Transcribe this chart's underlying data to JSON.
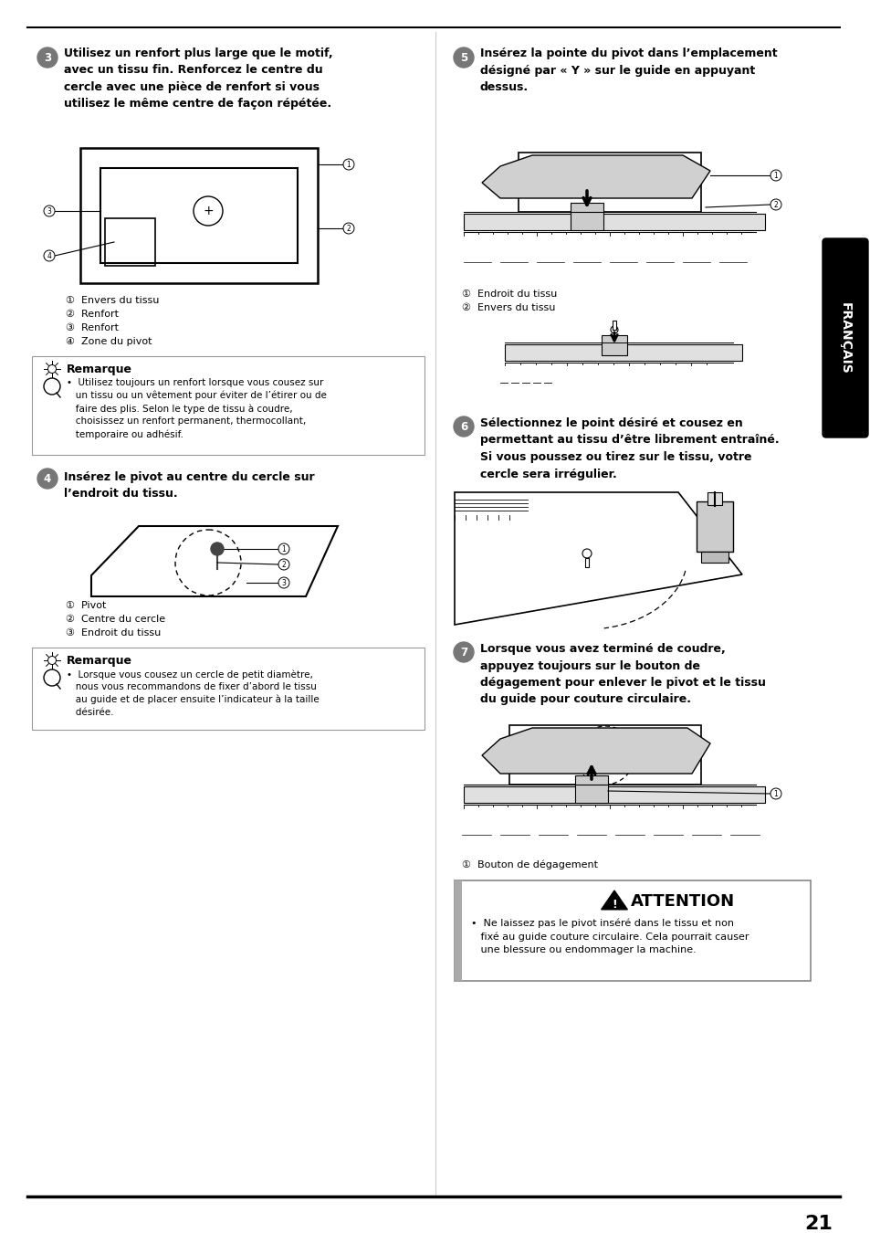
{
  "background_color": "#ffffff",
  "page_number": "21",
  "sidebar_text": "FRANÇAIS",
  "step3_title": "Utilisez un renfort plus large que le motif,\navec un tissu fin. Renforcez le centre du\ncercle avec une pièce de renfort si vous\nutilisez le même centre de façon répétée.",
  "step3_labels": [
    "①  Envers du tissu",
    "②  Renfort",
    "③  Renfort",
    "④  Zone du pivot"
  ],
  "step4_title": "Insérez le pivot au centre du cercle sur\nl’endroit du tissu.",
  "step4_labels": [
    "①  Pivot",
    "②  Centre du cercle",
    "③  Endroit du tissu"
  ],
  "step5_title": "Insérez la pointe du pivot dans l’emplacement\ndésigné par « Y » sur le guide en appuyant\ndessus.",
  "step5_labels": [
    "①  Endroit du tissu",
    "②  Envers du tissu"
  ],
  "step6_title": "Sélectionnez le point désiré et cousez en\npermettant au tissu d’être librement entraîné.\nSi vous poussez ou tirez sur le tissu, votre\ncercle sera irrégulier.",
  "step7_title": "Lorsque vous avez terminé de coudre,\nappuyez toujours sur le bouton de\ndégagement pour enlever le pivot et le tissu\ndu guide pour couture circulaire.",
  "step7_labels": [
    "①  Bouton de dégagement"
  ],
  "note1_title": "Remarque",
  "note1_text": "•  Utilisez toujours un renfort lorsque vous cousez sur\n   un tissu ou un vêtement pour éviter de l’étirer ou de\n   faire des plis. Selon le type de tissu à coudre,\n   choisissez un renfort permanent, thermocollant,\n   temporaire ou adhésif.",
  "note2_title": "Remarque",
  "note2_text": "•  Lorsque vous cousez un cercle de petit diamètre,\n   nous vous recommandons de fixer d’abord le tissu\n   au guide et de placer ensuite l’indicateur à la taille\n   désirée.",
  "attention_title": "ATTENTION",
  "attention_text": "•  Ne laissez pas le pivot inséré dans le tissu et non\n   fixé au guide couture circulaire. Cela pourrait causer\n   une blessure ou endommager la machine."
}
